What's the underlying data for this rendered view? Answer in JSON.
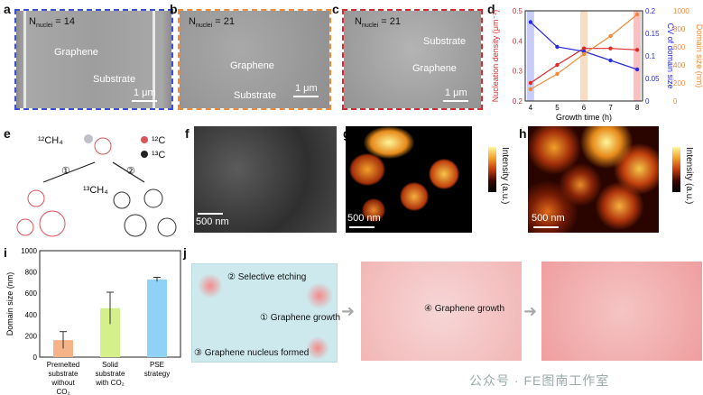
{
  "panels": {
    "a": {
      "label": "a",
      "nuclei_main": "N",
      "nuclei_sub": "nuclei",
      "nuclei_val": " = 14",
      "t1": "Graphene",
      "t2": "Substrate",
      "scale": "1 μm",
      "border": "#3a4fd6"
    },
    "b": {
      "label": "b",
      "nuclei_main": "N",
      "nuclei_sub": "nuclei",
      "nuclei_val": " = 21",
      "t1": "Graphene",
      "t2": "Substrate",
      "scale": "1 μm",
      "border": "#f08a3a"
    },
    "c": {
      "label": "c",
      "nuclei_main": "N",
      "nuclei_sub": "nuclei",
      "nuclei_val": " = 21",
      "t1": "Substrate",
      "t2": "Graphene",
      "scale": "1 μm",
      "border": "#d8282d"
    },
    "d": {
      "label": "d"
    },
    "e": {
      "label": "e",
      "ch4_12": "¹²CH₄",
      "ch4_13": "¹³CH₄",
      "c12": "¹²C",
      "c13": "¹³C",
      "step1": "①",
      "step2": "②"
    },
    "f": {
      "label": "f",
      "scale": "500 nm"
    },
    "g": {
      "label": "g",
      "scale": "500 nm",
      "cb": "Intensity (a.u.)"
    },
    "h": {
      "label": "h",
      "scale": "500 nm",
      "cb": "Intensity (a.u.)"
    },
    "i": {
      "label": "i"
    },
    "j": {
      "label": "j",
      "s1": "② Selective etching",
      "s2": "① Graphene growth",
      "s3": "③ Graphene nucleus formed",
      "s4": "④ Graphene growth"
    }
  },
  "watermark": "公众号 · FE图南工作室",
  "chart_data": [
    {
      "type": "line",
      "x": [
        4,
        5,
        6,
        7,
        8
      ],
      "xlabel": "Growth time (h)",
      "xticks": [
        "4",
        "5",
        "6",
        "7",
        "8"
      ],
      "series": [
        {
          "axis": "left",
          "color": "#e02a2a",
          "values": [
            0.26,
            0.32,
            0.375,
            0.375,
            0.37
          ]
        },
        {
          "axis": "right",
          "color": "#2a2ae0",
          "values": [
            0.175,
            0.12,
            0.11,
            0.09,
            0.07
          ]
        },
        {
          "axis": "right2",
          "color": "#f08a3a",
          "values": [
            130,
            300,
            520,
            720,
            960
          ]
        }
      ],
      "axes": {
        "left": {
          "label": "Nucleation density (μm⁻²)",
          "lim": [
            0.2,
            0.5
          ],
          "ticks": [
            "0.2",
            "0.3",
            "0.4",
            "0.5"
          ],
          "color": "#e02a2a"
        },
        "right": {
          "label": "CV of domain size",
          "lim": [
            0.0,
            0.2
          ],
          "ticks": [
            "0",
            "0.05",
            "0.1",
            "0.15",
            "0.2"
          ],
          "color": "#2a2ae0"
        },
        "right2": {
          "label": "Domain size (nm)",
          "lim": [
            0,
            1000
          ],
          "ticks": [
            "0",
            "200",
            "400",
            "600",
            "800",
            "1000"
          ],
          "color": "#f08a3a"
        }
      },
      "bands": [
        {
          "x": 4,
          "color": "#b9c0f5"
        },
        {
          "x": 6,
          "color": "#f8d3b5"
        },
        {
          "x": 8,
          "color": "#f6b1b1"
        }
      ]
    },
    {
      "type": "bar",
      "categories": [
        "Premelted substrate without CO₂",
        "Solid substrate with CO₂",
        "PSE strategy"
      ],
      "values": [
        160,
        460,
        730
      ],
      "errors": [
        80,
        150,
        20
      ],
      "colors": [
        "#f5b387",
        "#d4f08a",
        "#8fd2f5"
      ],
      "ylabel": "Domain size (nm)",
      "ylim": [
        0,
        1000
      ],
      "yticks": [
        "0",
        "200",
        "400",
        "600",
        "800",
        "1000"
      ]
    }
  ]
}
